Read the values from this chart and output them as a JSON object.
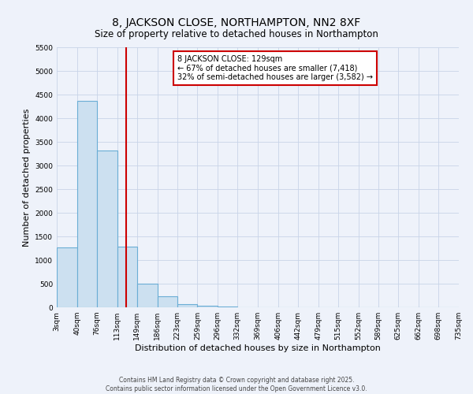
{
  "title": "8, JACKSON CLOSE, NORTHAMPTON, NN2 8XF",
  "subtitle": "Size of property relative to detached houses in Northampton",
  "xlabel": "Distribution of detached houses by size in Northampton",
  "ylabel": "Number of detached properties",
  "bin_edges": [
    3,
    40,
    76,
    113,
    149,
    186,
    223,
    259,
    296,
    332,
    369,
    406,
    442,
    479,
    515,
    552,
    589,
    625,
    662,
    698,
    735
  ],
  "bar_heights": [
    1270,
    4370,
    3310,
    1290,
    500,
    230,
    75,
    30,
    10,
    0,
    0,
    0,
    0,
    0,
    0,
    0,
    0,
    0,
    0,
    0
  ],
  "bar_facecolor": "#cce0f0",
  "bar_edgecolor": "#6aadd5",
  "vline_x": 129,
  "vline_color": "#cc0000",
  "ylim": [
    0,
    5500
  ],
  "yticks": [
    0,
    500,
    1000,
    1500,
    2000,
    2500,
    3000,
    3500,
    4000,
    4500,
    5000,
    5500
  ],
  "annotation_text": "8 JACKSON CLOSE: 129sqm\n← 67% of detached houses are smaller (7,418)\n32% of semi-detached houses are larger (3,582) →",
  "annotation_box_edgecolor": "#cc0000",
  "annotation_box_facecolor": "#ffffff",
  "footer_line1": "Contains HM Land Registry data © Crown copyright and database right 2025.",
  "footer_line2": "Contains public sector information licensed under the Open Government Licence v3.0.",
  "bg_color": "#eef2fa",
  "grid_color": "#c8d4e8",
  "title_fontsize": 10,
  "subtitle_fontsize": 8.5,
  "tick_label_fontsize": 6.5,
  "axis_label_fontsize": 8,
  "footer_fontsize": 5.5
}
